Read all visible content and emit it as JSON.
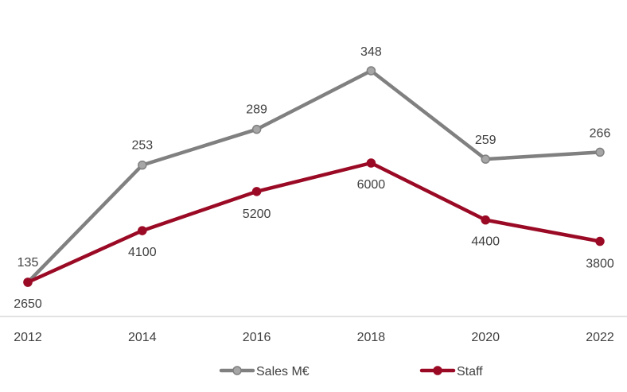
{
  "chart_data": {
    "type": "line",
    "title": "",
    "xlabel": "",
    "ylabel": "",
    "x": [
      "2012",
      "2014",
      "2016",
      "2018",
      "2020",
      "2022"
    ],
    "series": [
      {
        "name": "Sales M€",
        "values": [
          135,
          253,
          289,
          348,
          259,
          266
        ],
        "color": "#808080",
        "marker_fill": "#a6a6a6",
        "label_position": "above"
      },
      {
        "name": "Staff",
        "values": [
          2650,
          4100,
          5200,
          6000,
          4400,
          3800
        ],
        "color": "#9b0a25",
        "marker_fill": "#9b0a25",
        "label_position": "below"
      }
    ],
    "axes": {
      "sales_range": [
        120,
        360
      ],
      "staff_range": [
        2500,
        9000
      ]
    },
    "grid": false,
    "legend": "bottom",
    "axis_color": "#d9d9d9"
  }
}
